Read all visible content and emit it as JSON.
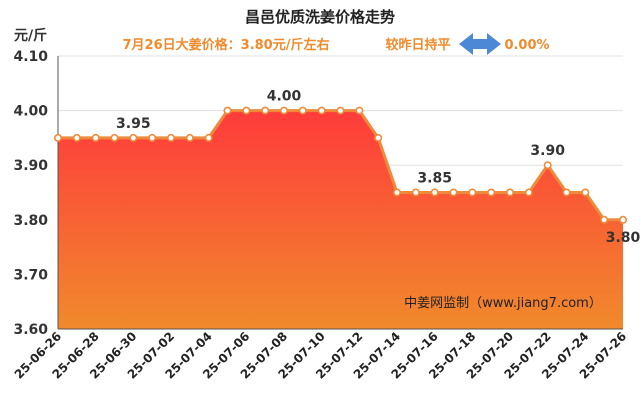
{
  "chart_data": {
    "type": "area",
    "title": "昌邑优质洗姜价格走势",
    "subtitle_left": "7月26日大姜价格：3.80元/斤左右",
    "subtitle_right_label": "较昨日持平",
    "subtitle_right_value": "0.00%",
    "ylabel": "元/斤",
    "ylim": [
      3.6,
      4.1
    ],
    "yticks": [
      "3.60",
      "3.70",
      "3.80",
      "3.90",
      "4.00",
      "4.10"
    ],
    "grid": true,
    "watermark": "中姜网监制（www.jiang7.com）",
    "x_tick_labels": [
      "25-06-26",
      "25-06-28",
      "25-06-30",
      "25-07-02",
      "25-07-04",
      "25-07-06",
      "25-07-08",
      "25-07-10",
      "25-07-12",
      "25-07-14",
      "25-07-16",
      "25-07-18",
      "25-07-20",
      "25-07-22",
      "25-07-24",
      "25-07-26"
    ],
    "x": [
      "25-06-26",
      "25-06-27",
      "25-06-28",
      "25-06-29",
      "25-06-30",
      "25-07-01",
      "25-07-02",
      "25-07-03",
      "25-07-04",
      "25-07-05",
      "25-07-06",
      "25-07-07",
      "25-07-08",
      "25-07-09",
      "25-07-10",
      "25-07-11",
      "25-07-12",
      "25-07-13",
      "25-07-14",
      "25-07-15",
      "25-07-16",
      "25-07-17",
      "25-07-18",
      "25-07-19",
      "25-07-20",
      "25-07-21",
      "25-07-22",
      "25-07-23",
      "25-07-24",
      "25-07-25",
      "25-07-26"
    ],
    "values": [
      3.95,
      3.95,
      3.95,
      3.95,
      3.95,
      3.95,
      3.95,
      3.95,
      3.95,
      4.0,
      4.0,
      4.0,
      4.0,
      4.0,
      4.0,
      4.0,
      4.0,
      3.95,
      3.85,
      3.85,
      3.85,
      3.85,
      3.85,
      3.85,
      3.85,
      3.85,
      3.9,
      3.85,
      3.85,
      3.8,
      3.8
    ],
    "data_labels": [
      {
        "index": 4,
        "text": "3.95"
      },
      {
        "index": 12,
        "text": "4.00"
      },
      {
        "index": 20,
        "text": "3.85"
      },
      {
        "index": 26,
        "text": "3.90"
      },
      {
        "index": 30,
        "text": "3.80"
      }
    ],
    "colors": {
      "line": "#ee8a3a",
      "marker_fill": "#ffffff",
      "area_top": "#ff3b3b",
      "area_bottom": "#f08a2c",
      "arrow": "#4d88d6",
      "grid": "#e0e0e0"
    }
  }
}
